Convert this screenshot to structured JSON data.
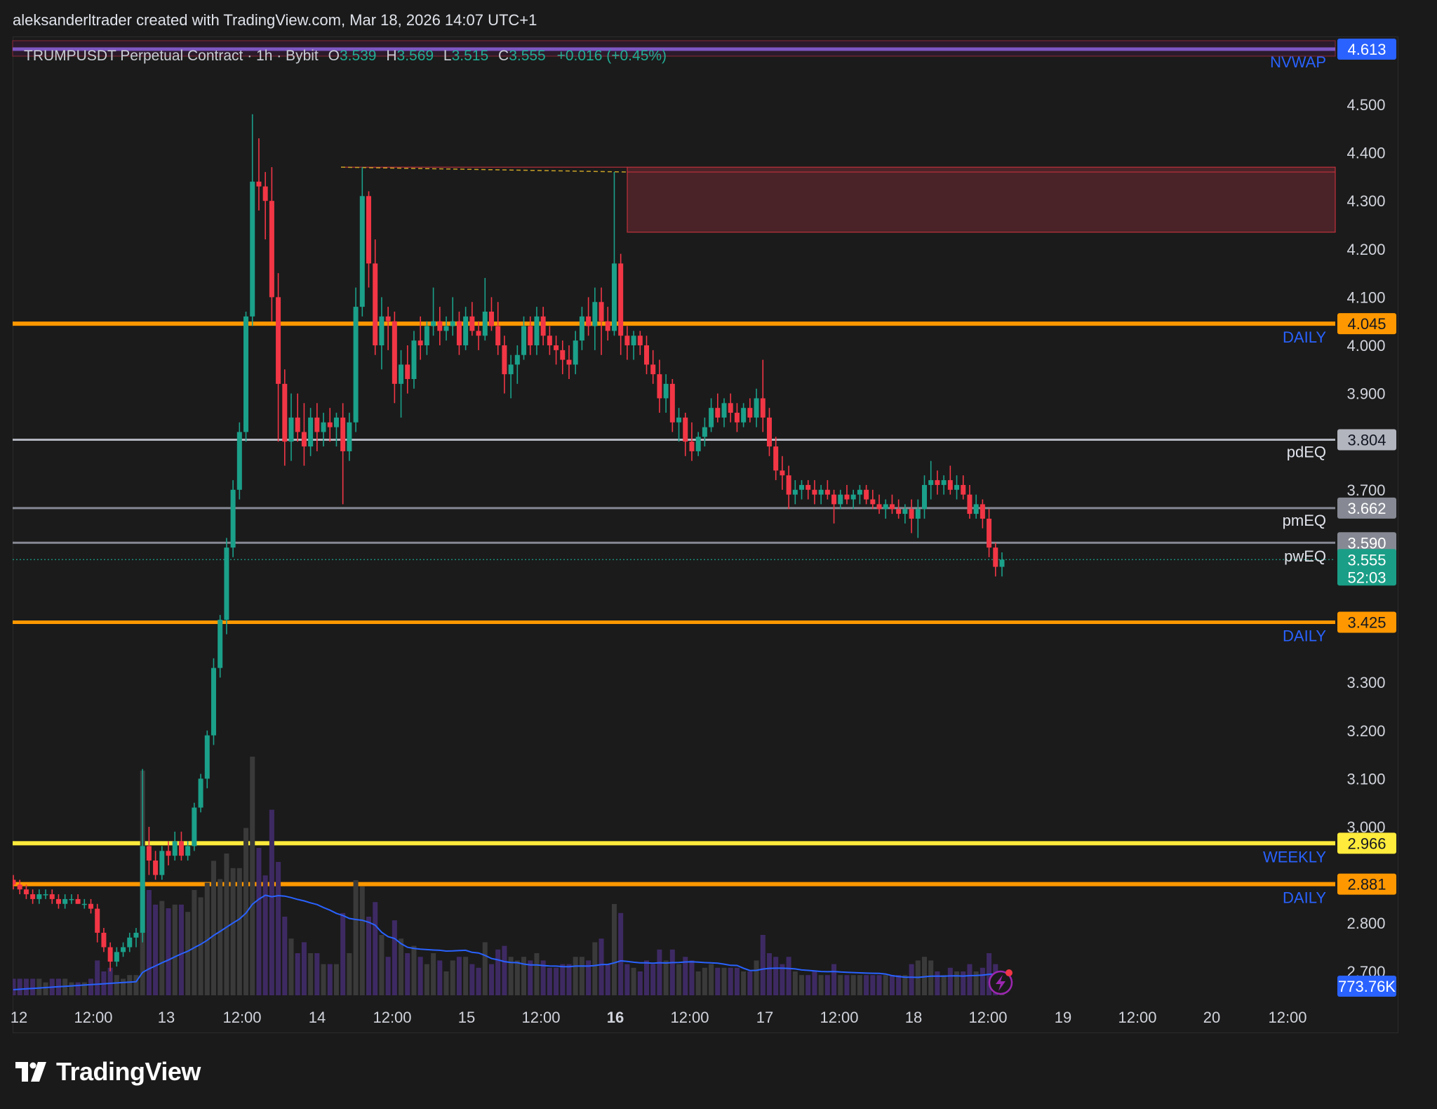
{
  "header": {
    "attribution": "aleksanderltrader created with TradingView.com, Mar 18, 2026 14:07 UTC+1"
  },
  "legend": {
    "symbol": "TRUMPUSDT Perpetual Contract · 1h · Bybit",
    "open_label": "O",
    "open": "3.539",
    "high_label": "H",
    "high": "3.569",
    "low_label": "L",
    "low": "3.515",
    "close_label": "C",
    "close": "3.555",
    "change": "+0.016 (+0.45%)"
  },
  "footer": {
    "brand": "TradingView"
  },
  "chart_data": {
    "type": "candlestick",
    "timeframe": "1h",
    "ylim": [
      2.66,
      4.64
    ],
    "y_ticks": [
      "4.500",
      "4.400",
      "4.300",
      "4.200",
      "4.100",
      "4.000",
      "3.900",
      "3.700",
      "3.300",
      "3.200",
      "3.100",
      "3.000",
      "2.800",
      "2.700"
    ],
    "x_ticks": [
      "12",
      "12:00",
      "13",
      "12:00",
      "14",
      "12:00",
      "15",
      "12:00",
      "16",
      "12:00",
      "17",
      "12:00",
      "18",
      "12:00",
      "19",
      "12:00",
      "20",
      "12:00"
    ],
    "colors": {
      "up": "#1ba08a",
      "down": "#f23645",
      "daily": "#ff9800",
      "weekly": "#ffeb3b",
      "eq": "#b2b5be",
      "nvwap": "#7e57c2",
      "label_blue": "#2962ff",
      "volume_ma": "#2962ff"
    },
    "levels": [
      {
        "name": "NVWAP",
        "price": 4.613,
        "label": "4.613",
        "color": "#2962ff"
      },
      {
        "name": "DAILY",
        "price": 4.045,
        "label": "4.045",
        "color": "#ff9800"
      },
      {
        "name": "pdEQ",
        "price": 3.804,
        "label": "3.804",
        "color": "#b2b5be"
      },
      {
        "name": "pmEQ",
        "price": 3.662,
        "label": "3.662",
        "color": "#868993"
      },
      {
        "name": "pwEQ",
        "price": 3.59,
        "label": "3.590",
        "color": "#868993"
      },
      {
        "name": "DAILY",
        "price": 3.425,
        "label": "3.425",
        "color": "#ff9800"
      },
      {
        "name": "WEEKLY",
        "price": 2.966,
        "label": "2.966",
        "color": "#ffeb3b"
      },
      {
        "name": "DAILY",
        "price": 2.881,
        "label": "2.881",
        "color": "#ff9800"
      }
    ],
    "current_price": {
      "label": "3.555",
      "price": 3.555,
      "countdown": "52:03"
    },
    "volume_label": "773.76K",
    "supply_zone": {
      "top": 4.37,
      "bottom": 4.235
    },
    "candles": [
      [
        2.89,
        2.9,
        2.87,
        2.88
      ],
      [
        2.88,
        2.89,
        2.86,
        2.87
      ],
      [
        2.87,
        2.88,
        2.85,
        2.86
      ],
      [
        2.86,
        2.87,
        2.84,
        2.85
      ],
      [
        2.85,
        2.87,
        2.84,
        2.86
      ],
      [
        2.86,
        2.87,
        2.85,
        2.86
      ],
      [
        2.86,
        2.87,
        2.84,
        2.85
      ],
      [
        2.85,
        2.86,
        2.83,
        2.84
      ],
      [
        2.84,
        2.86,
        2.83,
        2.85
      ],
      [
        2.85,
        2.86,
        2.84,
        2.85
      ],
      [
        2.85,
        2.86,
        2.84,
        2.84
      ],
      [
        2.84,
        2.85,
        2.83,
        2.84
      ],
      [
        2.84,
        2.85,
        2.82,
        2.83
      ],
      [
        2.83,
        2.84,
        2.76,
        2.78
      ],
      [
        2.78,
        2.79,
        2.74,
        2.75
      ],
      [
        2.75,
        2.76,
        2.7,
        2.72
      ],
      [
        2.72,
        2.75,
        2.71,
        2.74
      ],
      [
        2.74,
        2.76,
        2.73,
        2.75
      ],
      [
        2.75,
        2.78,
        2.74,
        2.77
      ],
      [
        2.77,
        2.79,
        2.75,
        2.78
      ],
      [
        2.78,
        3.12,
        2.76,
        2.96
      ],
      [
        2.96,
        3.0,
        2.9,
        2.93
      ],
      [
        2.93,
        2.95,
        2.89,
        2.9
      ],
      [
        2.9,
        2.96,
        2.89,
        2.95
      ],
      [
        2.95,
        2.97,
        2.92,
        2.94
      ],
      [
        2.94,
        2.99,
        2.93,
        2.97
      ],
      [
        2.97,
        2.99,
        2.93,
        2.94
      ],
      [
        2.94,
        2.97,
        2.93,
        2.96
      ],
      [
        2.96,
        3.05,
        2.95,
        3.04
      ],
      [
        3.04,
        3.11,
        3.03,
        3.1
      ],
      [
        3.1,
        3.2,
        3.08,
        3.19
      ],
      [
        3.19,
        3.35,
        3.17,
        3.33
      ],
      [
        3.33,
        3.44,
        3.31,
        3.43
      ],
      [
        3.43,
        3.6,
        3.4,
        3.58
      ],
      [
        3.58,
        3.72,
        3.56,
        3.7
      ],
      [
        3.7,
        3.84,
        3.68,
        3.82
      ],
      [
        3.82,
        4.07,
        3.8,
        4.06
      ],
      [
        4.06,
        4.48,
        4.04,
        4.34
      ],
      [
        4.34,
        4.43,
        4.28,
        4.33
      ],
      [
        4.33,
        4.36,
        4.22,
        4.3
      ],
      [
        4.3,
        4.37,
        4.05,
        4.1
      ],
      [
        4.1,
        4.15,
        3.8,
        3.92
      ],
      [
        3.92,
        3.95,
        3.75,
        3.8
      ],
      [
        3.8,
        3.9,
        3.76,
        3.85
      ],
      [
        3.85,
        3.9,
        3.8,
        3.82
      ],
      [
        3.82,
        3.88,
        3.75,
        3.79
      ],
      [
        3.79,
        3.87,
        3.77,
        3.85
      ],
      [
        3.85,
        3.88,
        3.78,
        3.82
      ],
      [
        3.82,
        3.86,
        3.79,
        3.84
      ],
      [
        3.84,
        3.87,
        3.8,
        3.83
      ],
      [
        3.83,
        3.86,
        3.79,
        3.85
      ],
      [
        3.85,
        3.88,
        3.67,
        3.78
      ],
      [
        3.78,
        3.86,
        3.76,
        3.84
      ],
      [
        3.84,
        4.12,
        3.82,
        4.08
      ],
      [
        4.08,
        4.37,
        4.06,
        4.31
      ],
      [
        4.31,
        4.32,
        4.12,
        4.17
      ],
      [
        4.17,
        4.22,
        3.98,
        4.0
      ],
      [
        4.0,
        4.1,
        3.95,
        4.06
      ],
      [
        4.06,
        4.08,
        3.99,
        4.05
      ],
      [
        4.05,
        4.07,
        3.88,
        3.92
      ],
      [
        3.92,
        3.99,
        3.85,
        3.96
      ],
      [
        3.96,
        4.0,
        3.9,
        3.93
      ],
      [
        3.93,
        4.03,
        3.91,
        4.01
      ],
      [
        4.01,
        4.06,
        3.97,
        4.0
      ],
      [
        4.0,
        4.05,
        3.98,
        4.04
      ],
      [
        4.04,
        4.12,
        4.02,
        4.05
      ],
      [
        4.05,
        4.08,
        4.0,
        4.03
      ],
      [
        4.03,
        4.06,
        4.01,
        4.04
      ],
      [
        4.04,
        4.1,
        4.02,
        4.05
      ],
      [
        4.05,
        4.07,
        3.98,
        4.0
      ],
      [
        4.0,
        4.08,
        3.99,
        4.06
      ],
      [
        4.06,
        4.09,
        4.02,
        4.03
      ],
      [
        4.03,
        4.05,
        3.99,
        4.02
      ],
      [
        4.02,
        4.14,
        4.01,
        4.07
      ],
      [
        4.07,
        4.1,
        4.03,
        4.04
      ],
      [
        4.04,
        4.09,
        3.98,
        4.0
      ],
      [
        4.0,
        4.02,
        3.9,
        3.94
      ],
      [
        3.94,
        3.98,
        3.89,
        3.96
      ],
      [
        3.96,
        4.0,
        3.92,
        3.98
      ],
      [
        3.98,
        4.06,
        3.97,
        4.04
      ],
      [
        4.04,
        4.06,
        3.98,
        4.0
      ],
      [
        4.0,
        4.08,
        3.98,
        4.06
      ],
      [
        4.06,
        4.08,
        4.0,
        4.02
      ],
      [
        4.02,
        4.04,
        3.98,
        4.0
      ],
      [
        4.0,
        4.02,
        3.96,
        3.99
      ],
      [
        3.99,
        4.01,
        3.94,
        3.97
      ],
      [
        3.97,
        4.0,
        3.93,
        3.96
      ],
      [
        3.96,
        4.03,
        3.94,
        4.01
      ],
      [
        4.01,
        4.08,
        3.99,
        4.06
      ],
      [
        4.06,
        4.1,
        4.02,
        4.04
      ],
      [
        4.04,
        4.12,
        3.99,
        4.09
      ],
      [
        4.09,
        4.12,
        3.98,
        4.05
      ],
      [
        4.05,
        4.08,
        4.01,
        4.03
      ],
      [
        4.03,
        4.36,
        4.02,
        4.17
      ],
      [
        4.17,
        4.19,
        3.98,
        4.02
      ],
      [
        4.02,
        4.04,
        3.97,
        4.0
      ],
      [
        4.0,
        4.03,
        3.97,
        4.02
      ],
      [
        4.02,
        4.03,
        3.98,
        4.0
      ],
      [
        4.0,
        4.02,
        3.94,
        3.96
      ],
      [
        3.96,
        3.99,
        3.92,
        3.94
      ],
      [
        3.94,
        3.97,
        3.86,
        3.89
      ],
      [
        3.89,
        3.94,
        3.86,
        3.92
      ],
      [
        3.92,
        3.93,
        3.82,
        3.84
      ],
      [
        3.84,
        3.87,
        3.8,
        3.85
      ],
      [
        3.85,
        3.86,
        3.77,
        3.8
      ],
      [
        3.8,
        3.84,
        3.76,
        3.78
      ],
      [
        3.78,
        3.82,
        3.77,
        3.81
      ],
      [
        3.81,
        3.85,
        3.79,
        3.83
      ],
      [
        3.83,
        3.89,
        3.82,
        3.87
      ],
      [
        3.87,
        3.9,
        3.84,
        3.85
      ],
      [
        3.85,
        3.89,
        3.83,
        3.88
      ],
      [
        3.88,
        3.9,
        3.84,
        3.86
      ],
      [
        3.86,
        3.88,
        3.82,
        3.84
      ],
      [
        3.84,
        3.88,
        3.83,
        3.87
      ],
      [
        3.87,
        3.89,
        3.84,
        3.85
      ],
      [
        3.85,
        3.91,
        3.83,
        3.89
      ],
      [
        3.89,
        3.97,
        3.82,
        3.85
      ],
      [
        3.85,
        3.87,
        3.77,
        3.79
      ],
      [
        3.79,
        3.81,
        3.72,
        3.74
      ],
      [
        3.74,
        3.77,
        3.7,
        3.73
      ],
      [
        3.73,
        3.75,
        3.66,
        3.69
      ],
      [
        3.69,
        3.72,
        3.67,
        3.7
      ],
      [
        3.7,
        3.72,
        3.68,
        3.71
      ],
      [
        3.71,
        3.72,
        3.68,
        3.7
      ],
      [
        3.7,
        3.72,
        3.67,
        3.69
      ],
      [
        3.69,
        3.71,
        3.67,
        3.7
      ],
      [
        3.7,
        3.72,
        3.68,
        3.69
      ],
      [
        3.69,
        3.7,
        3.63,
        3.67
      ],
      [
        3.67,
        3.7,
        3.66,
        3.69
      ],
      [
        3.69,
        3.71,
        3.67,
        3.68
      ],
      [
        3.68,
        3.7,
        3.66,
        3.69
      ],
      [
        3.69,
        3.71,
        3.67,
        3.7
      ],
      [
        3.7,
        3.71,
        3.67,
        3.68
      ],
      [
        3.68,
        3.7,
        3.66,
        3.67
      ],
      [
        3.67,
        3.69,
        3.65,
        3.66
      ],
      [
        3.66,
        3.68,
        3.64,
        3.67
      ],
      [
        3.67,
        3.69,
        3.65,
        3.66
      ],
      [
        3.66,
        3.68,
        3.64,
        3.65
      ],
      [
        3.65,
        3.67,
        3.63,
        3.66
      ],
      [
        3.66,
        3.68,
        3.61,
        3.64
      ],
      [
        3.64,
        3.68,
        3.6,
        3.66
      ],
      [
        3.66,
        3.73,
        3.64,
        3.71
      ],
      [
        3.71,
        3.76,
        3.68,
        3.72
      ],
      [
        3.72,
        3.74,
        3.69,
        3.71
      ],
      [
        3.71,
        3.73,
        3.69,
        3.72
      ],
      [
        3.72,
        3.75,
        3.69,
        3.7
      ],
      [
        3.7,
        3.73,
        3.68,
        3.71
      ],
      [
        3.71,
        3.73,
        3.68,
        3.69
      ],
      [
        3.69,
        3.71,
        3.64,
        3.65
      ],
      [
        3.65,
        3.69,
        3.64,
        3.67
      ],
      [
        3.67,
        3.68,
        3.62,
        3.64
      ],
      [
        3.64,
        3.66,
        3.56,
        3.58
      ],
      [
        3.58,
        3.59,
        3.52,
        3.54
      ],
      [
        3.54,
        3.57,
        3.52,
        3.555
      ]
    ]
  }
}
